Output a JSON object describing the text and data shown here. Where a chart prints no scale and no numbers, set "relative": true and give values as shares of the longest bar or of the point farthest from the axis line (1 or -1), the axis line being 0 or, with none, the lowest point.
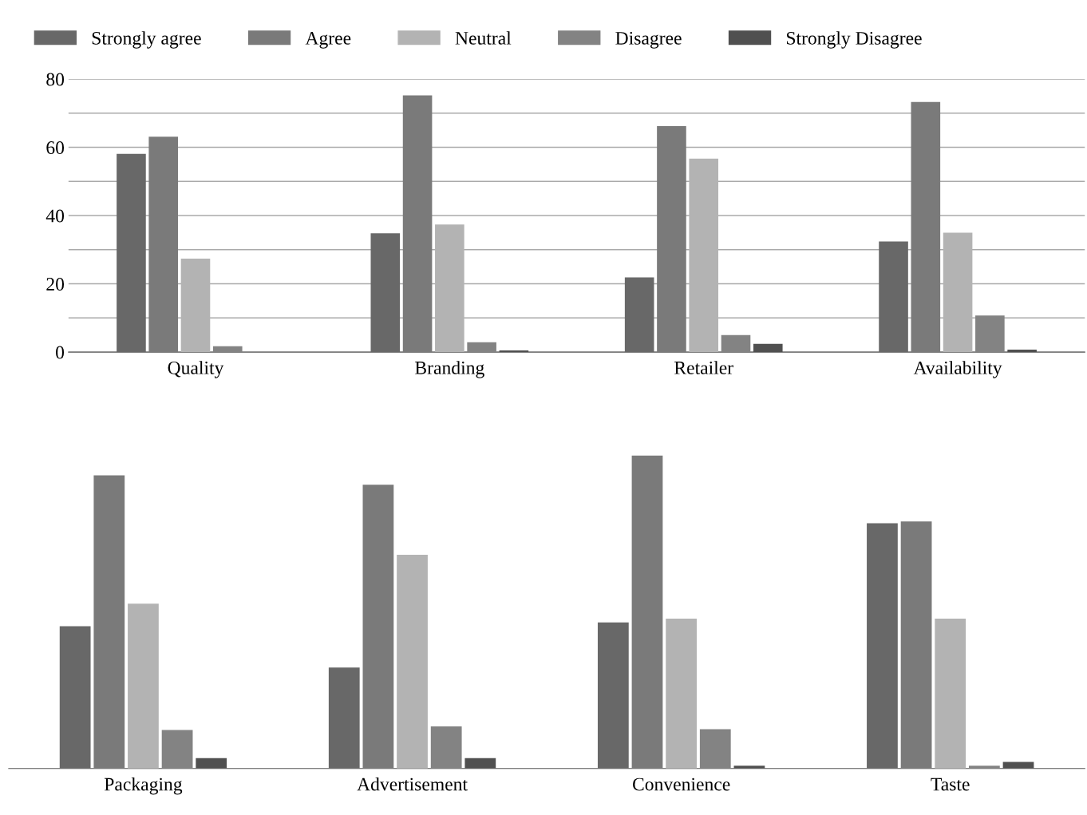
{
  "chart_data": [
    {
      "type": "bar",
      "categories": [
        "Quality",
        "Branding",
        "Retailer",
        "Availability"
      ],
      "ylim": [
        0,
        80
      ],
      "yticks": [
        0,
        {
          "value": 10,
          "label": null
        },
        20,
        {
          "value": 30,
          "label": null
        },
        40,
        {
          "value": 50,
          "label": null
        },
        60,
        {
          "value": 70,
          "label": null
        },
        80
      ],
      "grid": "y",
      "legend": "top",
      "series": [
        {
          "name": "Strongly agree",
          "color": "#686868",
          "values": [
            58.1,
            34.8,
            21.9,
            32.4
          ]
        },
        {
          "name": "Agree",
          "color": "#7a7a7a",
          "values": [
            63.1,
            75.2,
            66.2,
            73.3
          ]
        },
        {
          "name": "Neutral",
          "color": "#b3b3b3",
          "values": [
            27.4,
            37.4,
            56.7,
            35
          ]
        },
        {
          "name": "Disagree",
          "color": "#838383",
          "values": [
            1.7,
            2.9,
            5,
            10.7
          ]
        },
        {
          "name": "Strongly Disagree",
          "color": "#505050",
          "values": [
            0,
            0.5,
            2.4,
            0.7
          ]
        }
      ]
    },
    {
      "type": "bar",
      "categories": [
        "Packaging",
        "Advertisement",
        "Convenience",
        "Taste"
      ],
      "relative": true,
      "legend": false,
      "series": [
        {
          "color": "#686868",
          "values": [
            0.455,
            0.323,
            0.467,
            0.784
          ]
        },
        {
          "color": "#7a7a7a",
          "values": [
            0.937,
            0.907,
            1,
            0.79
          ]
        },
        {
          "color": "#b3b3b3",
          "values": [
            0.527,
            0.683,
            0.479,
            0.479
          ]
        },
        {
          "color": "#838383",
          "values": [
            0.123,
            0.135,
            0.126,
            0.009
          ]
        },
        {
          "color": "#505050",
          "values": [
            0.033,
            0.033,
            0.009,
            0.021
          ]
        }
      ]
    }
  ]
}
